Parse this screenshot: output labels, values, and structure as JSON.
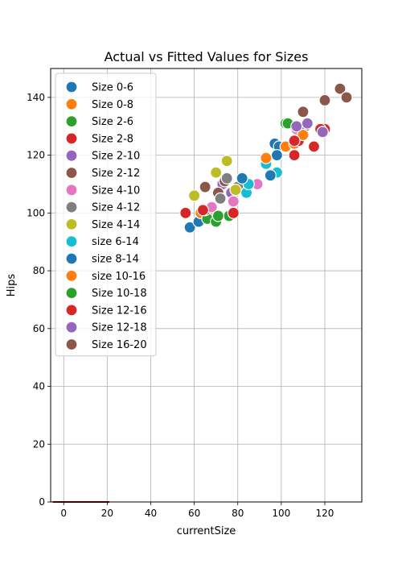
{
  "chart_data": {
    "type": "scatter",
    "title": "Actual vs Fitted Values for Sizes",
    "xlabel": "currentSize",
    "ylabel": "Hips",
    "xlim": [
      -6,
      137
    ],
    "ylim": [
      0,
      150
    ],
    "xticks": [
      0,
      20,
      40,
      60,
      80,
      100,
      120
    ],
    "yticks": [
      0,
      20,
      40,
      60,
      80,
      100,
      120,
      140
    ],
    "grid": true,
    "legend_position": "top-left",
    "fitted_line": {
      "x": [
        -5,
        21
      ],
      "y": [
        0,
        0
      ],
      "color": "#8b0000"
    },
    "series": [
      {
        "name": "Size 0-6",
        "color": "#1f77b4",
        "points": [
          [
            58,
            95
          ],
          [
            62,
            97
          ],
          [
            97,
            124
          ],
          [
            99,
            123
          ]
        ]
      },
      {
        "name": "Size 0-8",
        "color": "#ff7f0e",
        "points": [
          [
            63,
            100
          ],
          [
            67,
            101
          ],
          [
            93,
            119
          ],
          [
            102,
            123
          ],
          [
            106,
            124
          ]
        ]
      },
      {
        "name": "Size 2-6",
        "color": "#2ca02c",
        "points": [
          [
            66,
            98
          ],
          [
            70,
            97
          ],
          [
            76,
            99
          ],
          [
            102,
            131
          ],
          [
            108,
            126
          ]
        ]
      },
      {
        "name": "Size 2-8",
        "color": "#d62728",
        "points": [
          [
            56,
            100
          ],
          [
            65,
            101
          ],
          [
            78,
            100
          ],
          [
            106,
            120
          ],
          [
            108,
            125
          ],
          [
            115,
            123
          ],
          [
            120,
            129
          ]
        ]
      },
      {
        "name": "Size 2-10",
        "color": "#9467bd",
        "points": [
          [
            73,
            110
          ],
          [
            77,
            107
          ],
          [
            106,
            130
          ],
          [
            110,
            129
          ],
          [
            119,
            128
          ]
        ]
      },
      {
        "name": "Size 2-12",
        "color": "#8c564b",
        "points": [
          [
            65,
            109
          ],
          [
            71,
            107
          ],
          [
            74,
            111
          ],
          [
            110,
            135
          ],
          [
            120,
            139
          ],
          [
            127,
            143
          ]
        ]
      },
      {
        "name": "Size 4-10",
        "color": "#e377c2",
        "points": [
          [
            68,
            102
          ],
          [
            78,
            104
          ],
          [
            89,
            110
          ],
          [
            107,
            129
          ]
        ]
      },
      {
        "name": "Size 4-12",
        "color": "#7f7f7f",
        "points": [
          [
            72,
            105
          ],
          [
            75,
            112
          ],
          [
            80,
            109
          ],
          [
            111,
            130
          ]
        ]
      },
      {
        "name": "Size 4-14",
        "color": "#bcbd22",
        "points": [
          [
            60,
            106
          ],
          [
            70,
            114
          ],
          [
            75,
            118
          ],
          [
            79,
            108
          ]
        ]
      },
      {
        "name": "size 6-14",
        "color": "#17becf",
        "points": [
          [
            84,
            107
          ],
          [
            85,
            110
          ],
          [
            93,
            117
          ],
          [
            98,
            114
          ]
        ]
      },
      {
        "name": "size 8-14",
        "color": "#1f77b4",
        "points": [
          [
            82,
            112
          ],
          [
            95,
            113
          ],
          [
            98,
            120
          ]
        ]
      },
      {
        "name": "size 10-16",
        "color": "#ff7f0e",
        "points": [
          [
            93,
            119
          ],
          [
            110,
            127
          ]
        ]
      },
      {
        "name": "Size 10-18",
        "color": "#2ca02c",
        "points": [
          [
            71,
            99
          ],
          [
            103,
            131
          ]
        ]
      },
      {
        "name": "Size 12-16",
        "color": "#d62728",
        "points": [
          [
            64,
            101
          ],
          [
            106,
            125
          ],
          [
            118,
            129
          ]
        ]
      },
      {
        "name": "Size 12-18",
        "color": "#9467bd",
        "points": [
          [
            107,
            130
          ],
          [
            112,
            131
          ],
          [
            119,
            128
          ]
        ]
      },
      {
        "name": "Size 16-20",
        "color": "#8c564b",
        "points": [
          [
            110,
            135
          ],
          [
            120,
            139
          ],
          [
            127,
            143
          ],
          [
            130,
            140
          ]
        ]
      }
    ]
  }
}
